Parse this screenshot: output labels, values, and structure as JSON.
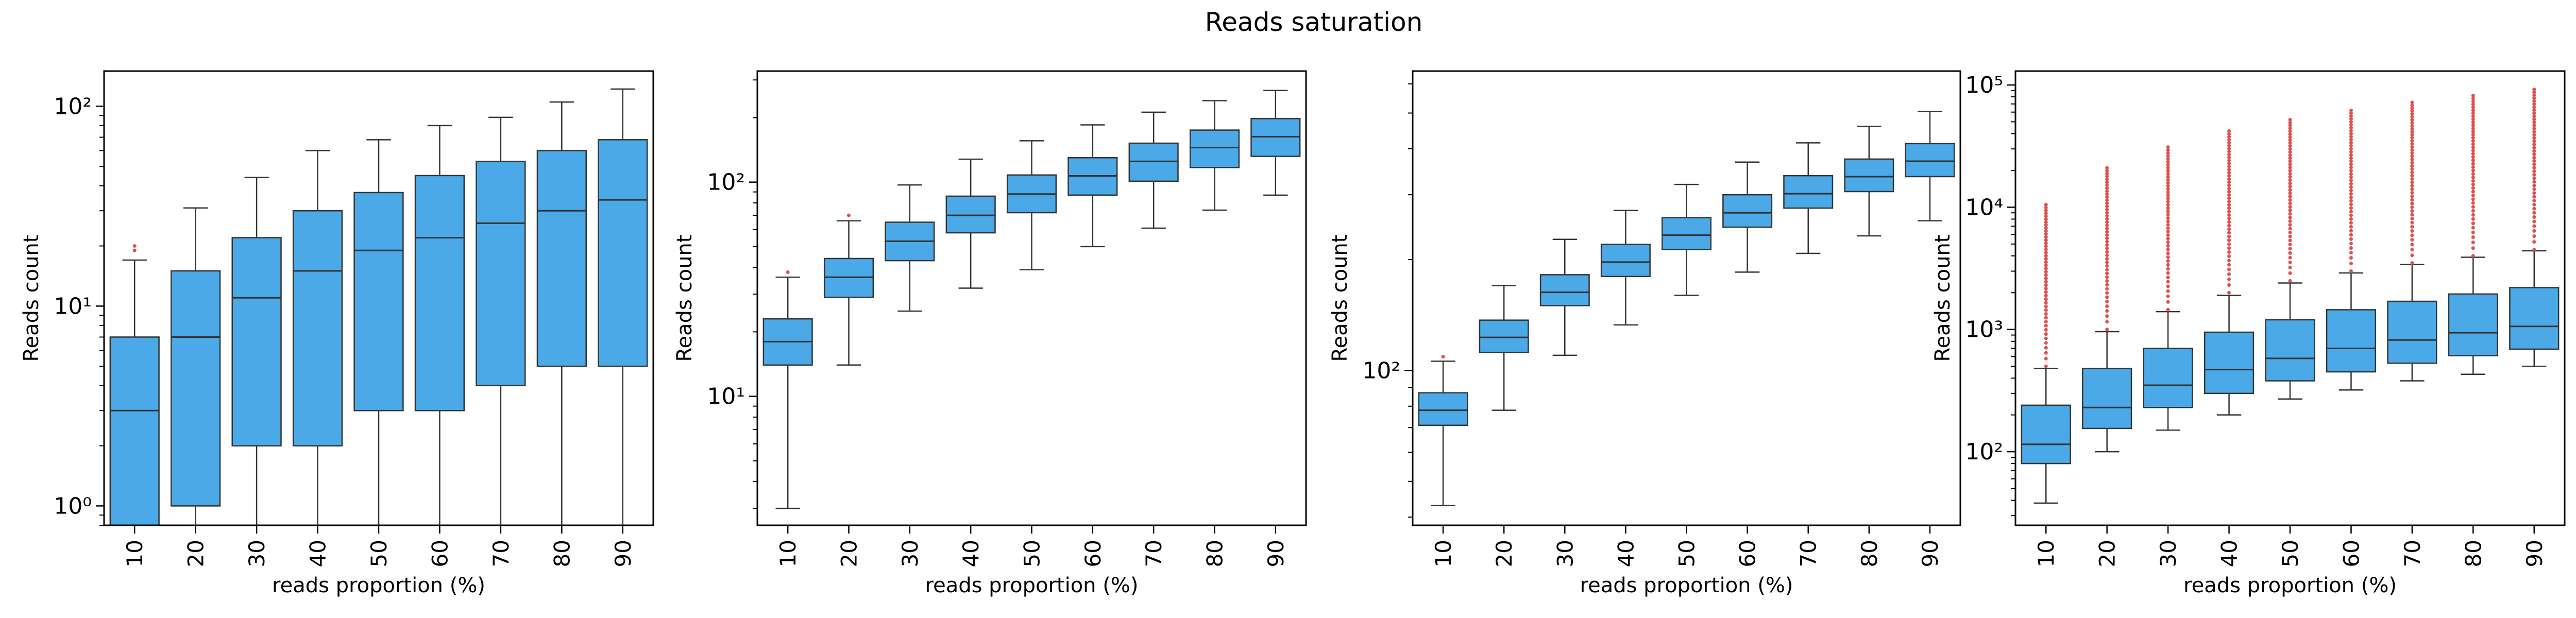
{
  "title": "Reads saturation",
  "colors": {
    "box_fill": "#4aa9e6",
    "box_edge": "#333333",
    "outlier": "#e05050",
    "axis": "#000000"
  },
  "chart_data": [
    {
      "type": "box",
      "yscale": "log",
      "ylim": [
        0.8,
        150
      ],
      "grid": false,
      "xlabel": "reads proportion (%)",
      "ylabel": "Reads count",
      "categories": [
        "10",
        "20",
        "30",
        "40",
        "50",
        "60",
        "70",
        "80",
        "90"
      ],
      "boxes": [
        {
          "whislo": 0.8,
          "q1": 0.8,
          "med": 3,
          "q3": 7,
          "whishi": 17,
          "fliers": [
            19,
            20
          ]
        },
        {
          "whislo": 0.8,
          "q1": 1,
          "med": 7,
          "q3": 15,
          "whishi": 31,
          "fliers": []
        },
        {
          "whislo": 0.8,
          "q1": 2,
          "med": 11,
          "q3": 22,
          "whishi": 44,
          "fliers": []
        },
        {
          "whislo": 0.8,
          "q1": 2,
          "med": 15,
          "q3": 30,
          "whishi": 60,
          "fliers": []
        },
        {
          "whislo": 0.8,
          "q1": 3,
          "med": 19,
          "q3": 37,
          "whishi": 68,
          "fliers": []
        },
        {
          "whislo": 0.8,
          "q1": 3,
          "med": 22,
          "q3": 45,
          "whishi": 80,
          "fliers": []
        },
        {
          "whislo": 0.8,
          "q1": 4,
          "med": 26,
          "q3": 53,
          "whishi": 88,
          "fliers": []
        },
        {
          "whislo": 0.8,
          "q1": 5,
          "med": 30,
          "q3": 60,
          "whishi": 105,
          "fliers": []
        },
        {
          "whislo": 0.8,
          "q1": 5,
          "med": 34,
          "q3": 68,
          "whishi": 122,
          "fliers": []
        }
      ],
      "ytick_values": [
        1,
        10,
        100
      ],
      "ytick_labels": [
        "10⁰",
        "10¹",
        "10²"
      ]
    },
    {
      "type": "box",
      "yscale": "log",
      "ylim": [
        2.5,
        330
      ],
      "grid": false,
      "xlabel": "reads proportion (%)",
      "ylabel": "Reads count",
      "categories": [
        "10",
        "20",
        "30",
        "40",
        "50",
        "60",
        "70",
        "80",
        "90"
      ],
      "boxes": [
        {
          "whislo": 3,
          "q1": 14,
          "med": 18,
          "q3": 23,
          "whishi": 36,
          "fliers": [
            38
          ]
        },
        {
          "whislo": 14,
          "q1": 29,
          "med": 36,
          "q3": 44,
          "whishi": 66,
          "fliers": [
            70
          ]
        },
        {
          "whislo": 25,
          "q1": 43,
          "med": 53,
          "q3": 65,
          "whishi": 97,
          "fliers": []
        },
        {
          "whislo": 32,
          "q1": 58,
          "med": 70,
          "q3": 86,
          "whishi": 128,
          "fliers": []
        },
        {
          "whislo": 39,
          "q1": 72,
          "med": 88,
          "q3": 108,
          "whishi": 156,
          "fliers": []
        },
        {
          "whislo": 50,
          "q1": 87,
          "med": 107,
          "q3": 130,
          "whishi": 185,
          "fliers": []
        },
        {
          "whislo": 61,
          "q1": 101,
          "med": 125,
          "q3": 152,
          "whishi": 212,
          "fliers": []
        },
        {
          "whislo": 74,
          "q1": 117,
          "med": 145,
          "q3": 175,
          "whishi": 240,
          "fliers": []
        },
        {
          "whislo": 87,
          "q1": 132,
          "med": 163,
          "q3": 198,
          "whishi": 268,
          "fliers": []
        }
      ],
      "ytick_values": [
        10,
        100
      ],
      "ytick_labels": [
        "10¹",
        "10²"
      ]
    },
    {
      "type": "box",
      "yscale": "log",
      "ylim": [
        38,
        650
      ],
      "grid": false,
      "xlabel": "reads proportion (%)",
      "ylabel": "Reads count",
      "categories": [
        "10",
        "20",
        "30",
        "40",
        "50",
        "60",
        "70",
        "80",
        "90"
      ],
      "boxes": [
        {
          "whislo": 43,
          "q1": 71,
          "med": 78,
          "q3": 87,
          "whishi": 106,
          "fliers": [
            109
          ]
        },
        {
          "whislo": 78,
          "q1": 112,
          "med": 123,
          "q3": 137,
          "whishi": 170,
          "fliers": []
        },
        {
          "whislo": 110,
          "q1": 150,
          "med": 163,
          "q3": 182,
          "whishi": 227,
          "fliers": []
        },
        {
          "whislo": 133,
          "q1": 180,
          "med": 197,
          "q3": 220,
          "whishi": 272,
          "fliers": []
        },
        {
          "whislo": 160,
          "q1": 213,
          "med": 233,
          "q3": 260,
          "whishi": 320,
          "fliers": []
        },
        {
          "whislo": 185,
          "q1": 245,
          "med": 268,
          "q3": 300,
          "whishi": 368,
          "fliers": []
        },
        {
          "whislo": 208,
          "q1": 276,
          "med": 302,
          "q3": 338,
          "whishi": 415,
          "fliers": []
        },
        {
          "whislo": 232,
          "q1": 306,
          "med": 336,
          "q3": 375,
          "whishi": 460,
          "fliers": []
        },
        {
          "whislo": 255,
          "q1": 336,
          "med": 370,
          "q3": 413,
          "whishi": 505,
          "fliers": []
        }
      ],
      "ytick_values": [
        100
      ],
      "ytick_labels": [
        "10²"
      ]
    },
    {
      "type": "box",
      "yscale": "log",
      "ylim": [
        25,
        130000
      ],
      "grid": false,
      "xlabel": "reads proportion (%)",
      "ylabel": "Reads count",
      "categories": [
        "10",
        "20",
        "30",
        "40",
        "50",
        "60",
        "70",
        "80",
        "90"
      ],
      "boxes": [
        {
          "whislo": 38,
          "q1": 80,
          "med": 115,
          "q3": 240,
          "whishi": 480,
          "fliers_range": [
            500,
            10500
          ]
        },
        {
          "whislo": 100,
          "q1": 155,
          "med": 230,
          "q3": 480,
          "whishi": 960,
          "fliers_range": [
            1000,
            21000
          ]
        },
        {
          "whislo": 150,
          "q1": 230,
          "med": 350,
          "q3": 700,
          "whishi": 1400,
          "fliers_range": [
            1450,
            31000
          ]
        },
        {
          "whislo": 200,
          "q1": 300,
          "med": 470,
          "q3": 950,
          "whishi": 1900,
          "fliers_range": [
            2000,
            42000
          ]
        },
        {
          "whislo": 270,
          "q1": 380,
          "med": 580,
          "q3": 1200,
          "whishi": 2400,
          "fliers_range": [
            2500,
            52000
          ]
        },
        {
          "whislo": 320,
          "q1": 450,
          "med": 700,
          "q3": 1450,
          "whishi": 2900,
          "fliers_range": [
            3000,
            62000
          ]
        },
        {
          "whislo": 380,
          "q1": 530,
          "med": 820,
          "q3": 1700,
          "whishi": 3400,
          "fliers_range": [
            3500,
            72000
          ]
        },
        {
          "whislo": 430,
          "q1": 610,
          "med": 940,
          "q3": 1950,
          "whishi": 3900,
          "fliers_range": [
            4000,
            82000
          ]
        },
        {
          "whislo": 500,
          "q1": 690,
          "med": 1060,
          "q3": 2200,
          "whishi": 4400,
          "fliers_range": [
            4500,
            92000
          ]
        }
      ],
      "ytick_values": [
        100,
        1000,
        10000,
        100000
      ],
      "ytick_labels": [
        "10²",
        "10³",
        "10⁴",
        "10⁵"
      ]
    }
  ]
}
